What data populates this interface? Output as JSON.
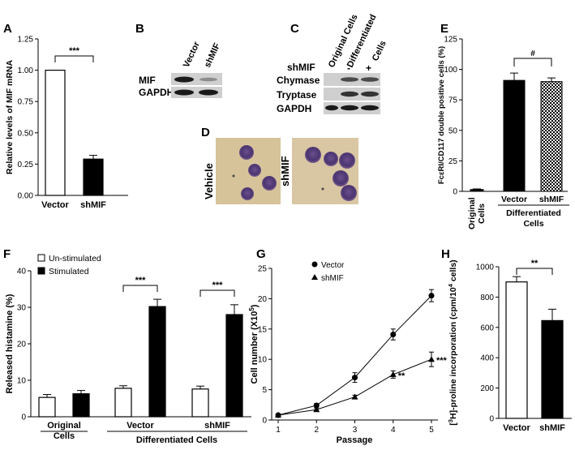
{
  "figure": {
    "panel_labels": {
      "A": "A",
      "B": "B",
      "C": "C",
      "D": "D",
      "E": "E",
      "F": "F",
      "G": "G",
      "H": "H"
    },
    "panel_b": {
      "lane_labels": [
        "Vector",
        "shMIF"
      ],
      "row_labels": [
        "MIF",
        "GAPDH"
      ]
    },
    "panel_c": {
      "lane_labels": [
        "Original Cells",
        "Differentiated",
        "Cells"
      ],
      "shmif_label": "shMIF",
      "shmif_signs": [
        "-",
        "+"
      ],
      "row_labels": [
        "Chymase",
        "Tryptase",
        "GAPDH"
      ]
    },
    "panel_d": {
      "labels": [
        "Vehicle",
        "shMIF"
      ]
    }
  },
  "chart_data": [
    {
      "id": "A",
      "type": "bar",
      "ylabel": "Relative levels of MIF mRNA",
      "ylim": [
        0,
        1.25
      ],
      "yticks": [
        "0.00",
        "0.25",
        "0.50",
        "0.75",
        "1.00",
        "1.25"
      ],
      "categories": [
        "Vector",
        "shMIF"
      ],
      "values": [
        1.0,
        0.29
      ],
      "errors": [
        0,
        0.03
      ],
      "significance": "***"
    },
    {
      "id": "E",
      "type": "bar",
      "ylabel": "FcεRI/CD117 double positive cells (%)",
      "ylim": [
        0,
        125
      ],
      "yticks": [
        "0",
        "25",
        "50",
        "75",
        "100",
        "125"
      ],
      "categories": [
        "Original Cells",
        "Vector",
        "shMIF"
      ],
      "category_lines": [
        [
          "Original",
          "Cells"
        ],
        [
          "Vector"
        ],
        [
          "shMIF"
        ]
      ],
      "values": [
        1.5,
        91,
        90
      ],
      "errors": [
        0.5,
        6,
        3
      ],
      "group_label": [
        "Differentiated",
        "Cells"
      ],
      "significance": "#"
    },
    {
      "id": "F",
      "type": "bar",
      "ylabel": "Released histamine (%)",
      "ylim": [
        0,
        40
      ],
      "yticks": [
        "0",
        "10",
        "20",
        "30",
        "40"
      ],
      "groups": [
        "Original Cells",
        "Vector",
        "shMIF"
      ],
      "group_lines": [
        [
          "Original",
          "Cells"
        ],
        [
          "Vector"
        ],
        [
          "shMIF"
        ]
      ],
      "series": [
        {
          "name": "Un-stimulated",
          "values": [
            5.3,
            7.8,
            7.6
          ],
          "errors": [
            0.8,
            0.7,
            0.8
          ]
        },
        {
          "name": "Stimulated",
          "values": [
            6.3,
            30.2,
            28.0
          ],
          "errors": [
            0.9,
            2.0,
            2.7
          ]
        }
      ],
      "group_label": "Differentiated Cells",
      "significance": [
        "***",
        "***"
      ]
    },
    {
      "id": "G",
      "type": "line",
      "xlabel": "Passage",
      "ylabel": "Cell number (X10^5)",
      "ylabel_parts": [
        "Cell number (X10",
        "5",
        ")"
      ],
      "x": [
        1,
        2,
        3,
        4,
        5
      ],
      "xticks": [
        "1",
        "2",
        "3",
        "4",
        "5"
      ],
      "ylim": [
        0,
        25
      ],
      "yticks": [
        "0",
        "5",
        "10",
        "15",
        "20",
        "25"
      ],
      "series": [
        {
          "name": "Vector",
          "values": [
            0.8,
            2.4,
            7.0,
            14.1,
            20.5
          ],
          "errors": [
            0.1,
            0.3,
            0.8,
            0.9,
            1.0
          ]
        },
        {
          "name": "shMIF",
          "values": [
            0.8,
            1.7,
            3.8,
            7.5,
            10.0
          ],
          "errors": [
            0.1,
            0.2,
            0.3,
            0.6,
            1.2
          ]
        }
      ],
      "annotations": [
        "**",
        "***"
      ]
    },
    {
      "id": "H",
      "type": "bar",
      "ylabel": "[3H]-proline incorporation (cpm/10^4 cells)",
      "ylabel_parts": [
        "[",
        "3",
        "H]-proline incorporation (cpm/10",
        "4",
        " cells)"
      ],
      "ylim": [
        0,
        1000
      ],
      "yticks": [
        "0",
        "200",
        "400",
        "600",
        "800",
        "1000"
      ],
      "categories": [
        "Vector",
        "shMIF"
      ],
      "values": [
        900,
        645
      ],
      "errors": [
        35,
        75
      ],
      "significance": "**"
    }
  ]
}
